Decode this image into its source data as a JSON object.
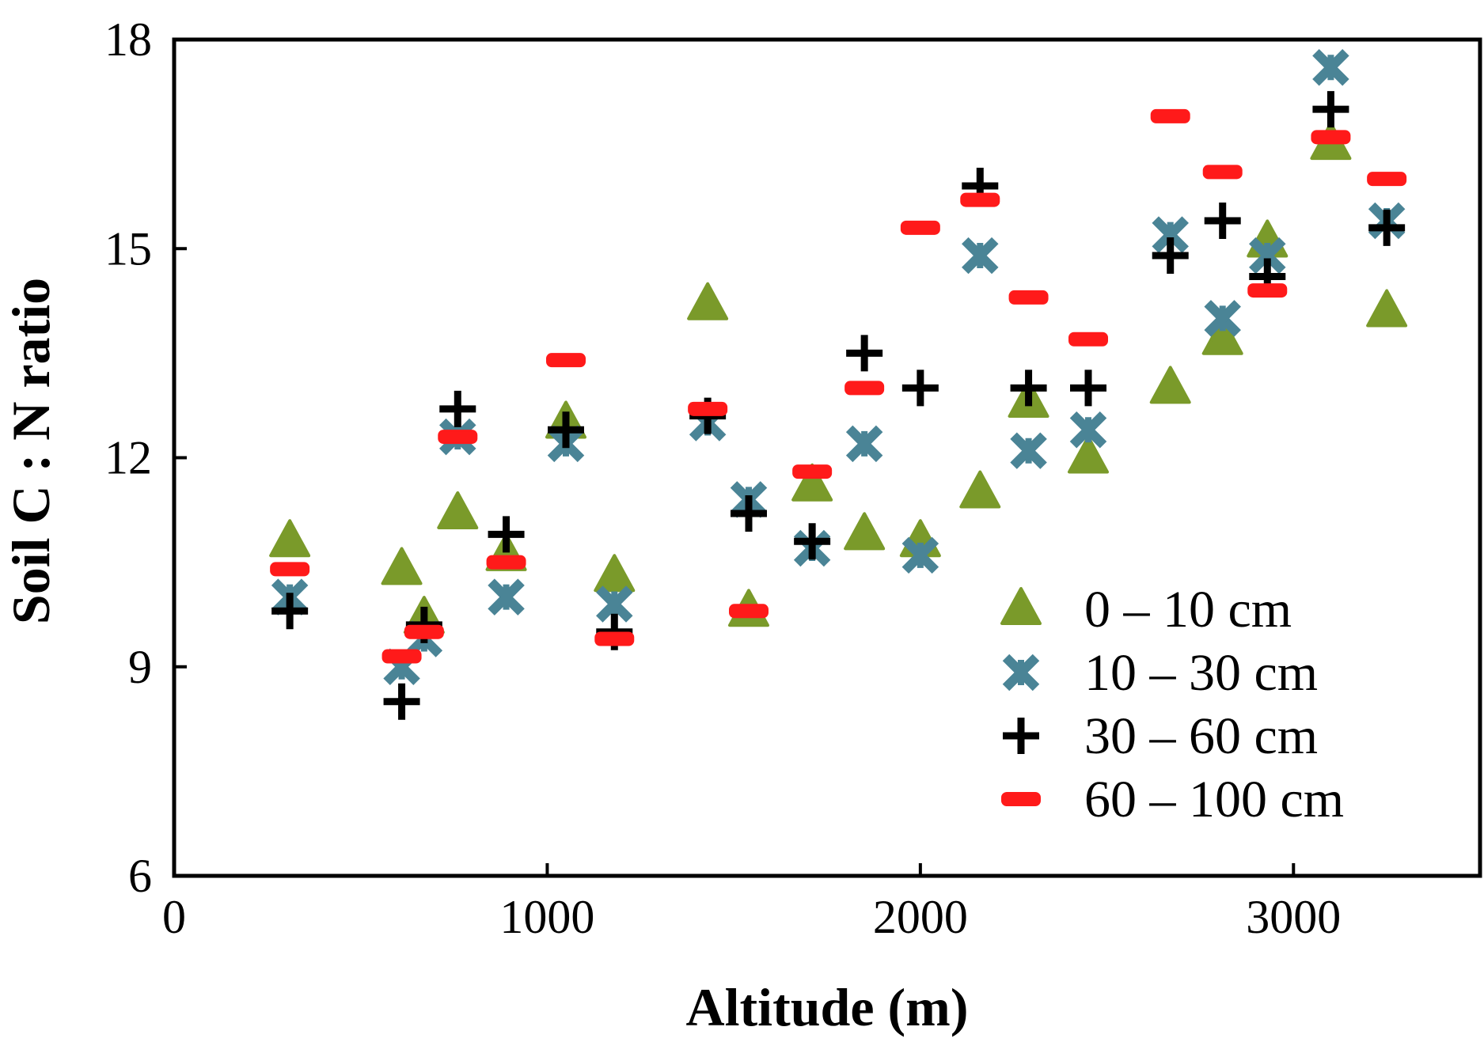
{
  "chart_data": {
    "type": "scatter",
    "xlabel": "Altitude (m)",
    "ylabel": "Soil C : N ratio",
    "xlim": [
      0,
      3500
    ],
    "ylim": [
      6,
      18
    ],
    "xticks": [
      0,
      1000,
      2000,
      3000
    ],
    "yticks": [
      6,
      9,
      12,
      15,
      18
    ],
    "grid": false,
    "legend_position": "lower-right inside",
    "series": [
      {
        "name": "0 – 10 cm",
        "marker": "triangle",
        "color": "#7a9a2a",
        "points": [
          [
            310,
            10.8
          ],
          [
            610,
            10.4
          ],
          [
            670,
            9.7
          ],
          [
            760,
            11.2
          ],
          [
            890,
            10.6
          ],
          [
            1050,
            12.5
          ],
          [
            1180,
            10.3
          ],
          [
            1430,
            14.2
          ],
          [
            1540,
            9.8
          ],
          [
            1710,
            11.6
          ],
          [
            1850,
            10.9
          ],
          [
            2000,
            10.8
          ],
          [
            2160,
            11.5
          ],
          [
            2290,
            12.8
          ],
          [
            2450,
            12.0
          ],
          [
            2670,
            13.0
          ],
          [
            2810,
            13.7
          ],
          [
            2930,
            15.1
          ],
          [
            3100,
            16.5
          ],
          [
            3250,
            14.1
          ]
        ]
      },
      {
        "name": "10 – 30 cm",
        "marker": "asterisk",
        "color": "#4a8496",
        "points": [
          [
            310,
            10.0
          ],
          [
            610,
            9.0
          ],
          [
            670,
            9.4
          ],
          [
            760,
            12.3
          ],
          [
            890,
            10.0
          ],
          [
            1050,
            12.2
          ],
          [
            1180,
            9.9
          ],
          [
            1430,
            12.5
          ],
          [
            1540,
            11.4
          ],
          [
            1710,
            10.7
          ],
          [
            1850,
            12.2
          ],
          [
            2000,
            10.6
          ],
          [
            2160,
            14.9
          ],
          [
            2290,
            12.1
          ],
          [
            2450,
            12.4
          ],
          [
            2670,
            15.2
          ],
          [
            2810,
            14.0
          ],
          [
            2930,
            14.9
          ],
          [
            3100,
            17.6
          ],
          [
            3250,
            15.4
          ]
        ]
      },
      {
        "name": "30 – 60 cm",
        "marker": "plus",
        "color": "#000000",
        "points": [
          [
            310,
            9.8
          ],
          [
            610,
            8.5
          ],
          [
            670,
            9.6
          ],
          [
            760,
            12.7
          ],
          [
            890,
            10.9
          ],
          [
            1050,
            12.4
          ],
          [
            1180,
            9.5
          ],
          [
            1430,
            12.6
          ],
          [
            1540,
            11.2
          ],
          [
            1710,
            10.8
          ],
          [
            1850,
            13.5
          ],
          [
            2000,
            13.0
          ],
          [
            2160,
            15.9
          ],
          [
            2290,
            13.0
          ],
          [
            2450,
            13.0
          ],
          [
            2670,
            14.9
          ],
          [
            2810,
            15.4
          ],
          [
            2930,
            14.6
          ],
          [
            3100,
            17.0
          ],
          [
            3250,
            15.3
          ]
        ]
      },
      {
        "name": "60 – 100 cm",
        "marker": "dash",
        "color": "#ff1a1a",
        "points": [
          [
            310,
            10.4
          ],
          [
            610,
            9.15
          ],
          [
            670,
            9.5
          ],
          [
            760,
            12.3
          ],
          [
            890,
            10.5
          ],
          [
            1050,
            13.4
          ],
          [
            1180,
            9.4
          ],
          [
            1430,
            12.7
          ],
          [
            1540,
            9.8
          ],
          [
            1710,
            11.8
          ],
          [
            1850,
            13.0
          ],
          [
            2000,
            15.3
          ],
          [
            2160,
            15.7
          ],
          [
            2290,
            14.3
          ],
          [
            2450,
            13.7
          ],
          [
            2670,
            16.9
          ],
          [
            2810,
            16.1
          ],
          [
            2930,
            14.4
          ],
          [
            3100,
            16.6
          ],
          [
            3250,
            16.0
          ]
        ]
      }
    ]
  }
}
